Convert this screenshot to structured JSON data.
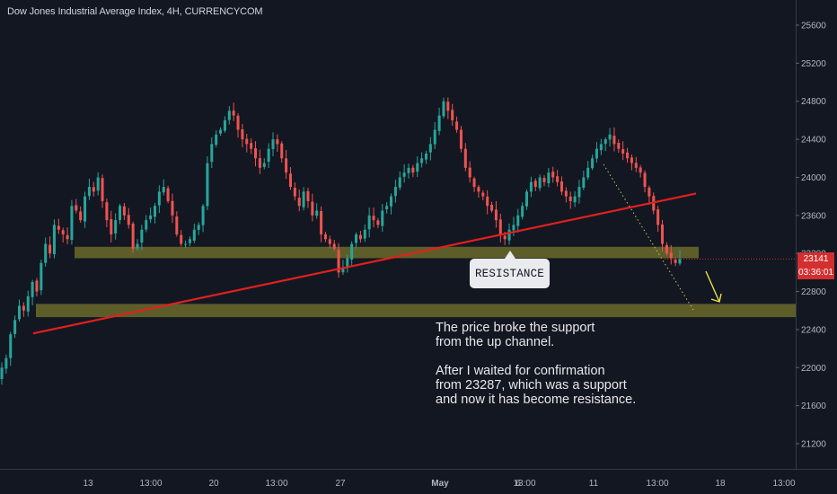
{
  "header": {
    "title": "Dow Jones Industrial Average Index, 4H, CURRENCYCOM"
  },
  "annotations": {
    "resistance_label": "RESISTANCE",
    "callout_lines": [
      "The price broke the support",
      "from the up channel.",
      "",
      "After I waited for confirmation",
      "from 23287, which was a support",
      "and now it has become resistance."
    ]
  },
  "price_axis": {
    "current_price": "23141",
    "countdown": "03:36:01",
    "current_price_color": "#d32f2f"
  },
  "colors": {
    "background": "#131722",
    "up_candle": "#26a69a",
    "down_candle": "#ef5350",
    "trendline": "#e0201f",
    "zone": "#6b6a2c",
    "projection_arrow": "#e8e24a"
  },
  "chart_data": {
    "type": "candlestick",
    "title": "Dow Jones Industrial Average Index, 4H, CURRENCYCOM",
    "y_ticks": [
      25600,
      25200,
      24800,
      24400,
      24000,
      23600,
      23200,
      22800,
      22400,
      22000,
      21600,
      21200
    ],
    "ylim": [
      20850,
      25800
    ],
    "x_ticks": [
      "13",
      "13:00",
      "20",
      "13:00",
      "27",
      "May",
      "6",
      "13:00",
      "11",
      "13:00",
      "18",
      "13:00"
    ],
    "closes": [
      22000,
      22100,
      22350,
      22500,
      22650,
      22600,
      22750,
      22900,
      22800,
      23100,
      23300,
      23200,
      23500,
      23450,
      23400,
      23350,
      23700,
      23650,
      23550,
      23800,
      23900,
      23850,
      24000,
      23750,
      23550,
      23400,
      23550,
      23700,
      23600,
      23500,
      23250,
      23300,
      23450,
      23550,
      23600,
      23700,
      23850,
      23900,
      23750,
      23600,
      23400,
      23300,
      23300,
      23350,
      23450,
      23500,
      23700,
      24150,
      24350,
      24450,
      24500,
      24600,
      24700,
      24650,
      24500,
      24400,
      24350,
      24300,
      24200,
      24100,
      24150,
      24300,
      24400,
      24350,
      24200,
      24050,
      23900,
      23800,
      23700,
      23850,
      23750,
      23600,
      23650,
      23400,
      23350,
      23300,
      23250,
      23000,
      23050,
      23150,
      23300,
      23400,
      23350,
      23450,
      23600,
      23550,
      23500,
      23650,
      23700,
      23800,
      23900,
      24000,
      24050,
      24100,
      24050,
      24150,
      24200,
      24250,
      24350,
      24500,
      24650,
      24800,
      24700,
      24600,
      24500,
      24300,
      24100,
      24000,
      23900,
      23850,
      23800,
      23700,
      23650,
      23550,
      23400,
      23350,
      23450,
      23500,
      23600,
      23700,
      23850,
      23950,
      23900,
      24000,
      23950,
      24050,
      24000,
      23950,
      23850,
      23800,
      23750,
      23800,
      23900,
      24000,
      24100,
      24200,
      24300,
      24350,
      24400,
      24450,
      24350,
      24300,
      24250,
      24200,
      24150,
      24100,
      24050,
      23900,
      23800,
      23650,
      23500,
      23300,
      23200,
      23150,
      23100,
      23141
    ],
    "zones": [
      {
        "low": 23150,
        "high": 23270,
        "label": ""
      },
      {
        "low": 22530,
        "high": 22670,
        "label": ""
      }
    ],
    "trendline": [
      {
        "bar_index": 5,
        "price": 22360
      },
      {
        "bar_index": 156,
        "price": 23830
      }
    ],
    "projection_target": 22600,
    "resistance_level": 23287
  }
}
